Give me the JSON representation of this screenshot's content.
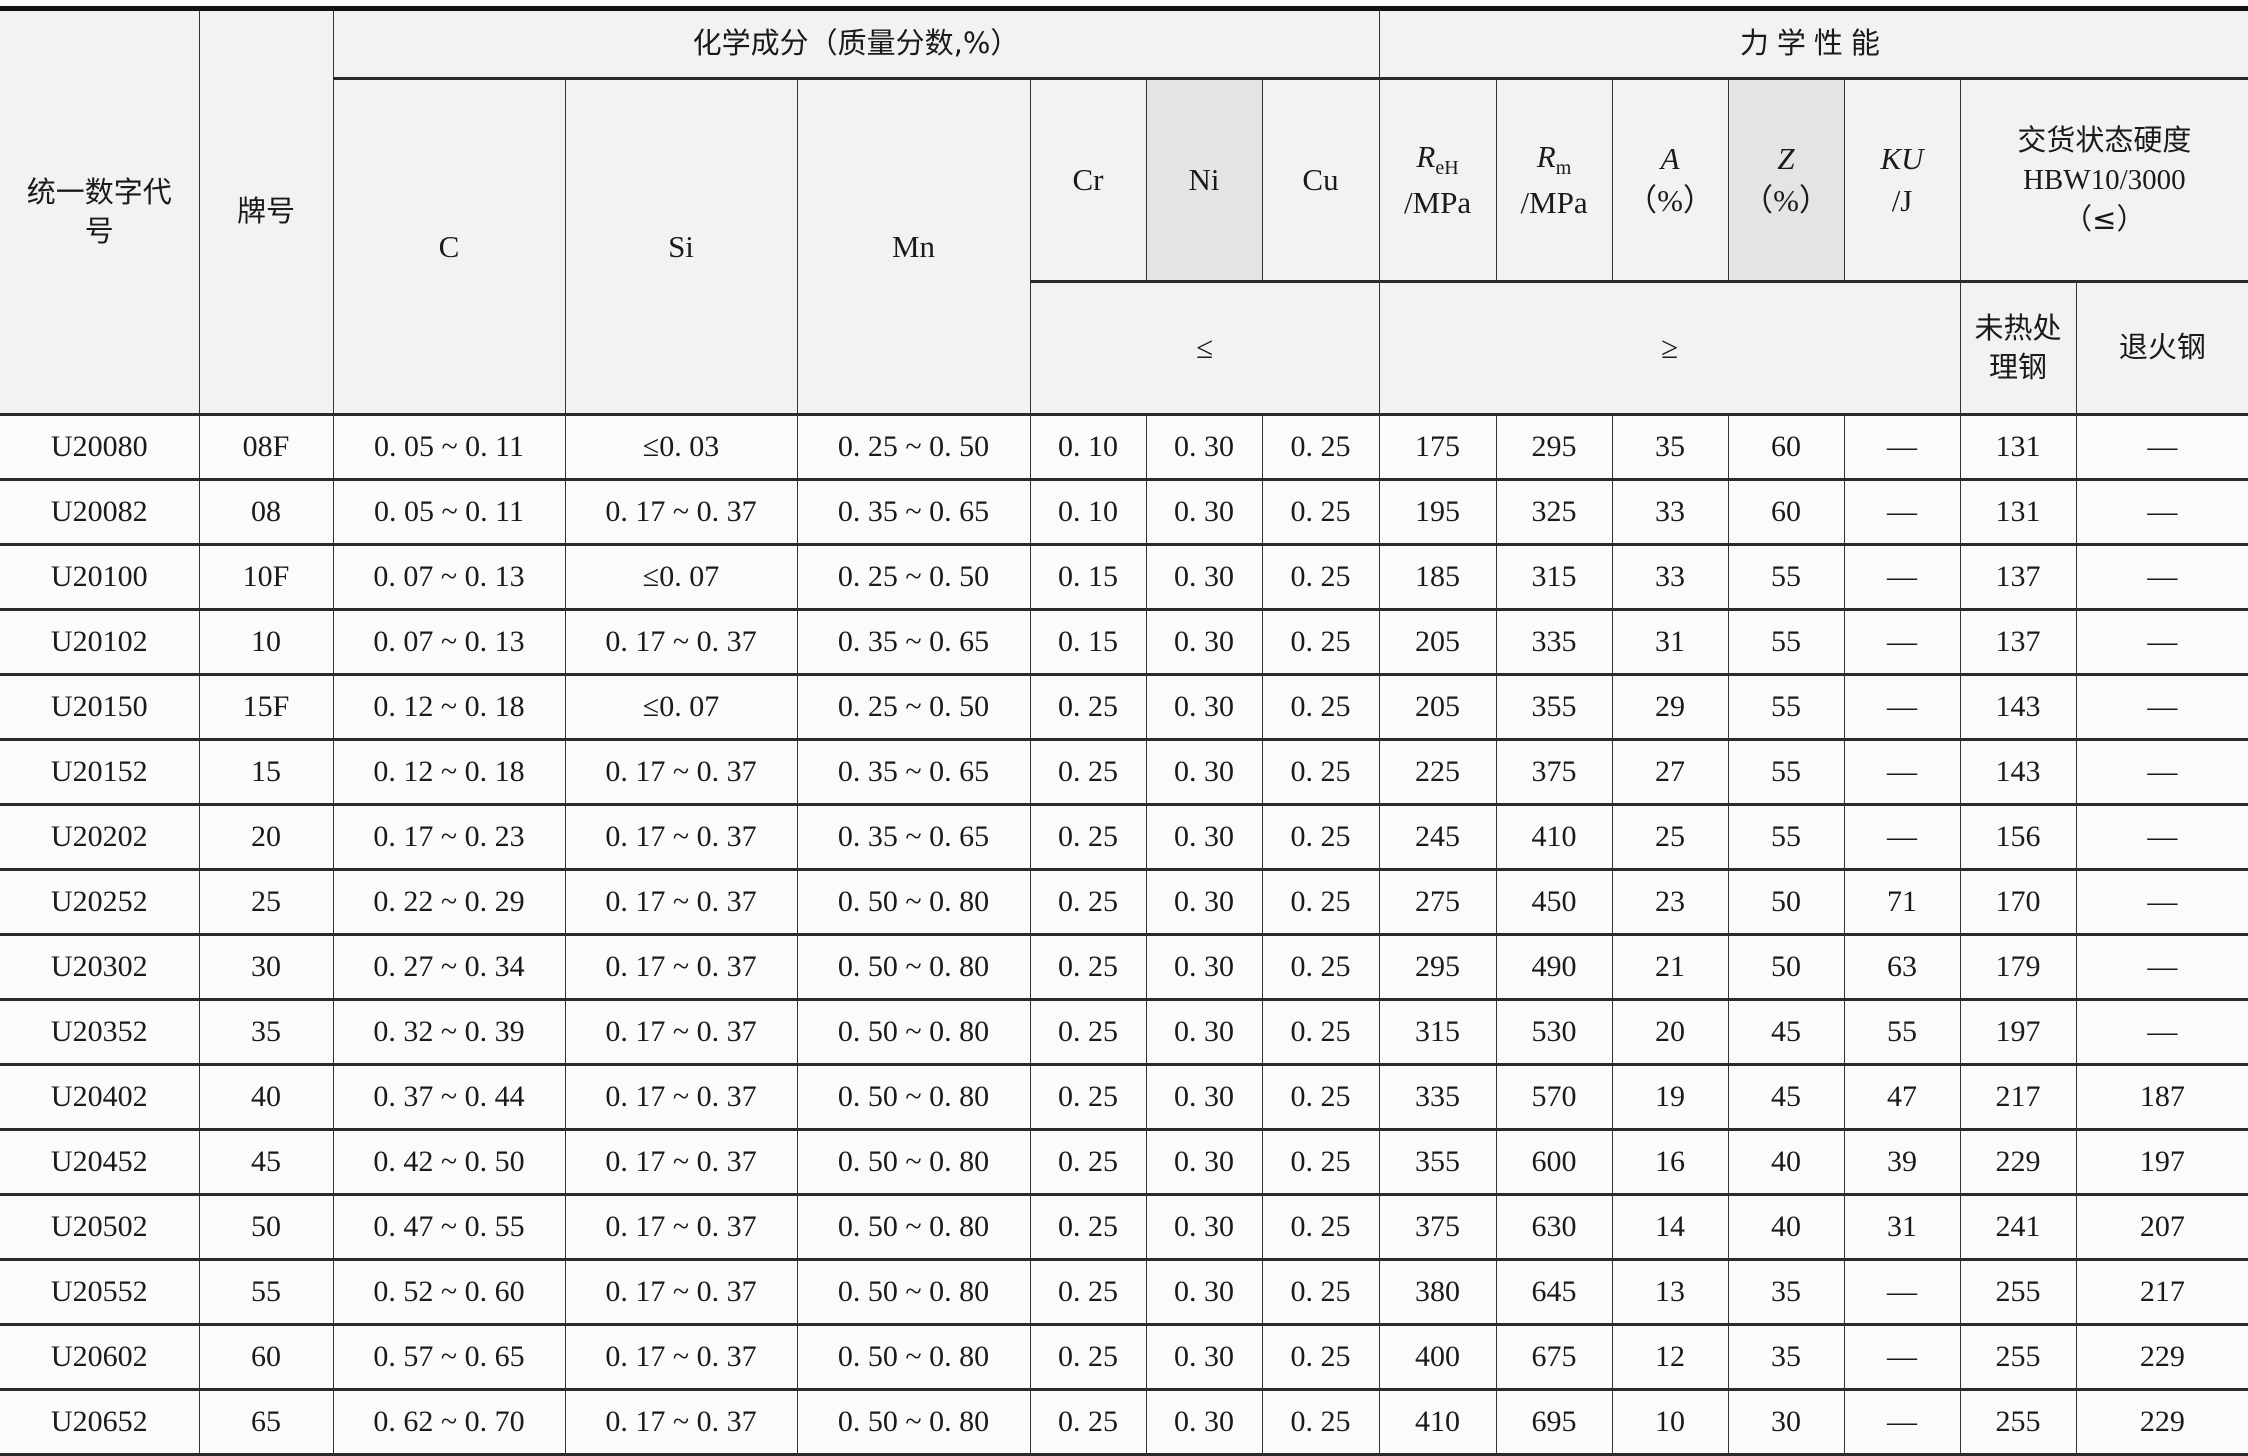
{
  "header": {
    "code": "统一数字代号",
    "grade": "牌号",
    "chem_group": "化学成分（质量分数,%）",
    "mech_group": "力学性能",
    "C": "C",
    "Si": "Si",
    "Mn": "Mn",
    "Cr": "Cr",
    "Ni": "Ni",
    "Cu": "Cu",
    "ReH": {
      "sym": "R",
      "sub": "eH",
      "unit": "/MPa"
    },
    "Rm": {
      "sym": "R",
      "sub": "m",
      "unit": "/MPa"
    },
    "A": {
      "sym": "A",
      "unit": "（%）"
    },
    "Z": {
      "sym": "Z",
      "unit": "（%）"
    },
    "KU": {
      "sym": "KU",
      "unit": "/J"
    },
    "hardness": {
      "line1": "交货状态硬度",
      "line2": "HBW10/3000",
      "line3": "（≤）"
    },
    "le": "≤",
    "ge": "≥",
    "untreated": "未热处理钢",
    "annealed": "退火钢"
  },
  "rows": [
    [
      "U20080",
      "08F",
      "0. 05 ~ 0. 11",
      "≤0. 03",
      "0. 25 ~ 0. 50",
      "0. 10",
      "0. 30",
      "0. 25",
      "175",
      "295",
      "35",
      "60",
      "—",
      "131",
      "—"
    ],
    [
      "U20082",
      "08",
      "0. 05 ~ 0. 11",
      "0. 17 ~ 0. 37",
      "0. 35 ~ 0. 65",
      "0. 10",
      "0. 30",
      "0. 25",
      "195",
      "325",
      "33",
      "60",
      "—",
      "131",
      "—"
    ],
    [
      "U20100",
      "10F",
      "0. 07 ~ 0. 13",
      "≤0. 07",
      "0. 25 ~ 0. 50",
      "0. 15",
      "0. 30",
      "0. 25",
      "185",
      "315",
      "33",
      "55",
      "—",
      "137",
      "—"
    ],
    [
      "U20102",
      "10",
      "0. 07 ~ 0. 13",
      "0. 17 ~ 0. 37",
      "0. 35 ~ 0. 65",
      "0. 15",
      "0. 30",
      "0. 25",
      "205",
      "335",
      "31",
      "55",
      "—",
      "137",
      "—"
    ],
    [
      "U20150",
      "15F",
      "0. 12 ~ 0. 18",
      "≤0. 07",
      "0. 25 ~ 0. 50",
      "0. 25",
      "0. 30",
      "0. 25",
      "205",
      "355",
      "29",
      "55",
      "—",
      "143",
      "—"
    ],
    [
      "U20152",
      "15",
      "0. 12 ~ 0. 18",
      "0. 17 ~ 0. 37",
      "0. 35 ~ 0. 65",
      "0. 25",
      "0. 30",
      "0. 25",
      "225",
      "375",
      "27",
      "55",
      "—",
      "143",
      "—"
    ],
    [
      "U20202",
      "20",
      "0. 17 ~ 0. 23",
      "0. 17 ~ 0. 37",
      "0. 35 ~ 0. 65",
      "0. 25",
      "0. 30",
      "0. 25",
      "245",
      "410",
      "25",
      "55",
      "—",
      "156",
      "—"
    ],
    [
      "U20252",
      "25",
      "0. 22 ~ 0. 29",
      "0. 17 ~ 0. 37",
      "0. 50 ~ 0. 80",
      "0. 25",
      "0. 30",
      "0. 25",
      "275",
      "450",
      "23",
      "50",
      "71",
      "170",
      "—"
    ],
    [
      "U20302",
      "30",
      "0. 27 ~ 0. 34",
      "0. 17 ~ 0. 37",
      "0. 50 ~ 0. 80",
      "0. 25",
      "0. 30",
      "0. 25",
      "295",
      "490",
      "21",
      "50",
      "63",
      "179",
      "—"
    ],
    [
      "U20352",
      "35",
      "0. 32 ~ 0. 39",
      "0. 17 ~ 0. 37",
      "0. 50 ~ 0. 80",
      "0. 25",
      "0. 30",
      "0. 25",
      "315",
      "530",
      "20",
      "45",
      "55",
      "197",
      "—"
    ],
    [
      "U20402",
      "40",
      "0. 37 ~ 0. 44",
      "0. 17 ~ 0. 37",
      "0. 50 ~ 0. 80",
      "0. 25",
      "0. 30",
      "0. 25",
      "335",
      "570",
      "19",
      "45",
      "47",
      "217",
      "187"
    ],
    [
      "U20452",
      "45",
      "0. 42 ~ 0. 50",
      "0. 17 ~ 0. 37",
      "0. 50 ~ 0. 80",
      "0. 25",
      "0. 30",
      "0. 25",
      "355",
      "600",
      "16",
      "40",
      "39",
      "229",
      "197"
    ],
    [
      "U20502",
      "50",
      "0. 47 ~ 0. 55",
      "0. 17 ~ 0. 37",
      "0. 50 ~ 0. 80",
      "0. 25",
      "0. 30",
      "0. 25",
      "375",
      "630",
      "14",
      "40",
      "31",
      "241",
      "207"
    ],
    [
      "U20552",
      "55",
      "0. 52 ~ 0. 60",
      "0. 17 ~ 0. 37",
      "0. 50 ~ 0. 80",
      "0. 25",
      "0. 30",
      "0. 25",
      "380",
      "645",
      "13",
      "35",
      "—",
      "255",
      "217"
    ],
    [
      "U20602",
      "60",
      "0. 57 ~ 0. 65",
      "0. 17 ~ 0. 37",
      "0. 50 ~ 0. 80",
      "0. 25",
      "0. 30",
      "0. 25",
      "400",
      "675",
      "12",
      "35",
      "—",
      "255",
      "229"
    ],
    [
      "U20652",
      "65",
      "0. 62 ~ 0. 70",
      "0. 17 ~ 0. 37",
      "0. 50 ~ 0. 80",
      "0. 25",
      "0. 30",
      "0. 25",
      "410",
      "695",
      "10",
      "30",
      "—",
      "255",
      "229"
    ]
  ]
}
